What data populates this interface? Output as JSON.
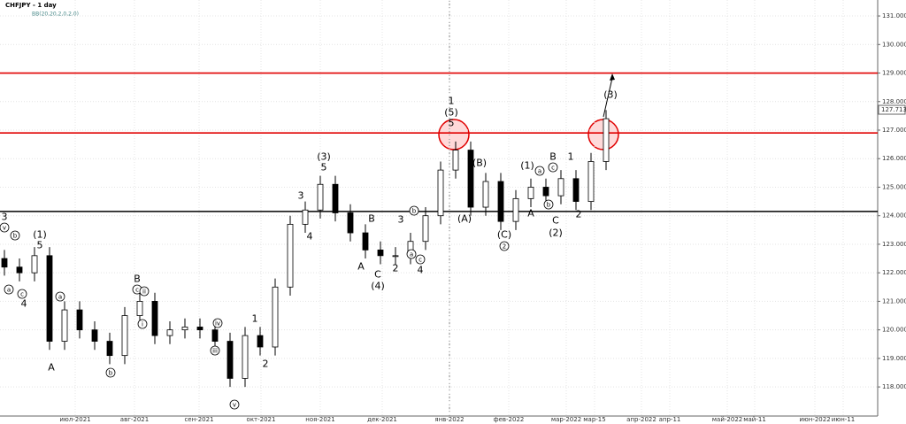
{
  "chart_data": {
    "type": "candlestick",
    "title": "CHFJPY - 1 day",
    "subtitle": "BB(20,20,2,0,2,0)",
    "open": [
      122.5,
      122.2,
      122.0,
      122.6,
      119.6,
      120.7,
      120.0,
      119.6,
      119.1,
      120.5,
      121.0,
      119.8,
      120.0,
      120.1,
      120.0,
      119.6,
      118.3,
      119.8,
      119.4,
      121.5,
      123.7,
      124.2,
      125.1,
      124.1,
      123.4,
      122.8,
      122.6,
      122.6,
      123.1,
      124.0,
      125.6,
      126.3,
      124.3,
      125.2,
      123.8,
      124.6,
      125.0,
      124.7,
      125.3,
      124.5,
      125.9
    ],
    "high": [
      122.8,
      122.5,
      122.9,
      122.9,
      121.0,
      121.0,
      120.3,
      119.9,
      120.8,
      121.3,
      121.3,
      120.3,
      120.4,
      120.4,
      120.3,
      119.9,
      120.1,
      120.1,
      121.8,
      124.0,
      124.5,
      125.4,
      125.4,
      124.4,
      123.7,
      123.1,
      122.9,
      123.4,
      124.3,
      125.9,
      126.6,
      126.6,
      125.5,
      125.5,
      124.9,
      125.3,
      125.3,
      125.6,
      125.6,
      126.2,
      127.7
    ],
    "low": [
      121.9,
      121.7,
      121.7,
      119.3,
      119.3,
      119.7,
      119.3,
      118.8,
      118.8,
      120.2,
      119.5,
      119.5,
      119.7,
      119.7,
      119.3,
      118.0,
      118.0,
      119.1,
      119.1,
      121.2,
      123.4,
      123.9,
      123.8,
      123.1,
      122.5,
      122.3,
      122.3,
      122.3,
      122.8,
      123.7,
      125.3,
      124.0,
      124.0,
      123.5,
      123.5,
      124.3,
      124.4,
      124.4,
      124.2,
      124.2,
      125.6
    ],
    "close": [
      122.2,
      122.0,
      122.6,
      119.6,
      120.7,
      120.0,
      119.6,
      119.1,
      120.5,
      121.0,
      119.8,
      120.0,
      120.1,
      120.0,
      119.6,
      118.3,
      119.8,
      119.4,
      121.5,
      123.7,
      124.2,
      125.1,
      124.1,
      123.4,
      122.8,
      122.6,
      122.6,
      123.1,
      124.0,
      125.6,
      126.3,
      124.3,
      125.2,
      123.8,
      124.6,
      125.0,
      124.7,
      125.3,
      124.5,
      125.9,
      127.4
    ],
    "ylim": [
      116.98,
      131.56
    ],
    "yticks": [
      {
        "value": 118,
        "label": "118.000"
      },
      {
        "value": 119,
        "label": "119.000"
      },
      {
        "value": 120,
        "label": "120.000"
      },
      {
        "value": 121,
        "label": "121.000"
      },
      {
        "value": 122,
        "label": "122.000"
      },
      {
        "value": 123,
        "label": "123.000"
      },
      {
        "value": 124,
        "label": "124.000"
      },
      {
        "value": 125,
        "label": "125.000"
      },
      {
        "value": 126,
        "label": "126.000"
      },
      {
        "value": 127,
        "label": "127.000"
      },
      {
        "value": 128,
        "label": "128.000"
      },
      {
        "value": 129,
        "label": "129.000"
      },
      {
        "value": 130,
        "label": "130.000"
      },
      {
        "value": 131,
        "label": "131.000"
      }
    ],
    "x_axis_labels": [
      "июл-2021",
      "авг-2021",
      "сен-2021",
      "окт-2021",
      "ноя-2021",
      "дек-2021",
      "янв-2022",
      "фев-2022",
      "мар-2022",
      "мар-15",
      "апр-2022",
      "апр-11",
      "май-2022",
      "май-11",
      "июн-2022",
      "июн-11"
    ],
    "last_price": 127.713,
    "levels": [
      {
        "value": 129.0,
        "color": "#e00000"
      },
      {
        "value": 126.9,
        "color": "#e00000"
      },
      {
        "value": 124.15,
        "color": "#000000"
      }
    ],
    "annotations": [
      "3",
      "(1)",
      "5",
      "4",
      "A",
      "B",
      "(3)",
      "5",
      "3",
      "4",
      "B",
      "A",
      "C",
      "(4)",
      "2",
      "3",
      "4",
      "1",
      "(5)",
      "5",
      "(B)",
      "(A)",
      "(C)",
      "(1)",
      "A",
      "B",
      "C",
      "(2)",
      "1",
      "2",
      "(3)",
      "1",
      "2",
      "v",
      "b",
      "a",
      "c",
      "a",
      "b",
      "c",
      "ii",
      "i",
      "iv",
      "iii",
      "v",
      "b",
      "a",
      "c",
      "a",
      "b",
      "c",
      "2"
    ]
  }
}
